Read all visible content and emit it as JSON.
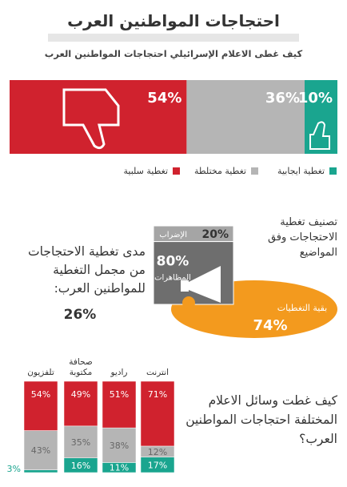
{
  "chart_data": [
    {
      "type": "bar",
      "orientation": "horizontal",
      "stacked": true,
      "title": "احتجاجات المواطنين العرب",
      "subtitle": "كيف غطى الاعلام الإسرائيلي احتجاجات المواطنين العرب",
      "series": [
        {
          "name": "تغطية سلبية",
          "color": "#d0222e",
          "values": [
            54
          ],
          "value_labels": [
            "54%"
          ]
        },
        {
          "name": "تغطية مختلطة",
          "color": "#b5b5b5",
          "values": [
            36
          ],
          "value_labels": [
            "36%"
          ]
        },
        {
          "name": "تغطية ايجابية",
          "color": "#1aa58f",
          "values": [
            10
          ],
          "value_labels": [
            "10%"
          ]
        }
      ]
    },
    {
      "type": "pie",
      "title": "تصنيف تغطية الاحتجاجات وفق المواضيع",
      "categories": [
        "الإضراب",
        "المظاهرات"
      ],
      "values": [
        20,
        80
      ],
      "value_labels": [
        "20%",
        "80%"
      ]
    },
    {
      "type": "pie",
      "title": "مدى تغطية الاحتجاجات من مجمل التغطية للمواطنين العرب:",
      "categories": [
        "بقية التغطيات",
        null
      ],
      "values": [
        74,
        26
      ],
      "value_labels": [
        "74%",
        "26%"
      ],
      "color": "#f39a1e"
    },
    {
      "type": "bar",
      "stacked": true,
      "title": "كيف غطت وسائل الاعلام المختلفة احتجاجات المواطنين العرب؟",
      "categories": [
        "تلفزيون",
        "صحافة مكتوبة",
        "راديو",
        "انترنت"
      ],
      "series": [
        {
          "name": "تغطية ايجابية",
          "color": "#1aa58f",
          "values": [
            3,
            16,
            11,
            17
          ],
          "value_labels": [
            "3%",
            "16%",
            "11%",
            "17%"
          ]
        },
        {
          "name": "تغطية مختلطة",
          "color": "#b5b5b5",
          "values": [
            43,
            35,
            38,
            12
          ],
          "value_labels": [
            "43%",
            "35%",
            "38%",
            "12%"
          ]
        },
        {
          "name": "تغطية سلبية",
          "color": "#d0222e",
          "values": [
            54,
            49,
            51,
            71
          ],
          "value_labels": [
            "54%",
            "49%",
            "51%",
            "71%"
          ]
        }
      ]
    }
  ]
}
